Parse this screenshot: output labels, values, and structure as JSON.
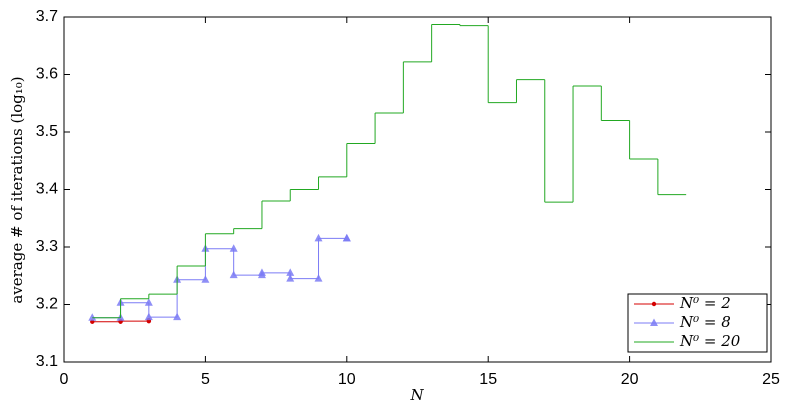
{
  "chart_data": {
    "type": "stairs",
    "xlabel": "N",
    "ylabel": "average # of iterations (log₁₀)",
    "xlim": [
      0,
      25
    ],
    "xticks": [
      0,
      5,
      10,
      15,
      20,
      25
    ],
    "ylim": [
      3.1,
      3.7
    ],
    "yticks": [
      3.1,
      3.2,
      3.3,
      3.4,
      3.5,
      3.6,
      3.7
    ],
    "legend": "lower right",
    "series": [
      {
        "name": "N⁰ = 2",
        "color": "#d40000",
        "marker": "dot",
        "x": [
          1,
          2,
          3
        ],
        "values": [
          3.17,
          3.171,
          3.173
        ]
      },
      {
        "name": "N⁰ = 8",
        "color": "#7b7bf5",
        "marker": "triangle",
        "x": [
          1,
          2,
          3,
          4,
          5,
          6,
          7,
          8,
          9,
          10
        ],
        "values": [
          3.177,
          3.203,
          3.178,
          3.243,
          3.297,
          3.251,
          3.255,
          3.245,
          3.315,
          3.315
        ]
      },
      {
        "name": "N⁰ = 20",
        "color": "#22a822",
        "marker": "none",
        "x": [
          1,
          2,
          3,
          4,
          5,
          6,
          7,
          8,
          9,
          10,
          11,
          12,
          13,
          14,
          15,
          16,
          17,
          18,
          19,
          20,
          21,
          22
        ],
        "values": [
          3.177,
          3.21,
          3.218,
          3.267,
          3.323,
          3.332,
          3.38,
          3.4,
          3.422,
          3.48,
          3.533,
          3.622,
          3.687,
          3.685,
          3.551,
          3.591,
          3.378,
          3.58,
          3.52,
          3.453,
          3.391,
          3.391
        ]
      }
    ]
  }
}
